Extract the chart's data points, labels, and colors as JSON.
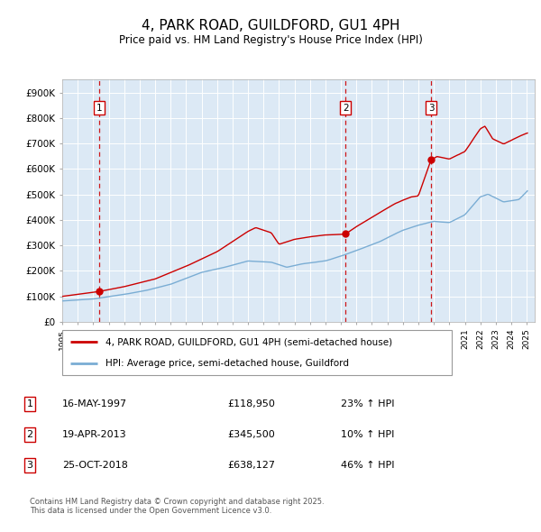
{
  "title": "4, PARK ROAD, GUILDFORD, GU1 4PH",
  "subtitle": "Price paid vs. HM Land Registry's House Price Index (HPI)",
  "background_color": "#dce9f5",
  "ylim": [
    0,
    950000
  ],
  "yticks": [
    0,
    100000,
    200000,
    300000,
    400000,
    500000,
    600000,
    700000,
    800000,
    900000
  ],
  "ytick_labels": [
    "£0",
    "£100K",
    "£200K",
    "£300K",
    "£400K",
    "£500K",
    "£600K",
    "£700K",
    "£800K",
    "£900K"
  ],
  "xlim_start": 1995.0,
  "xlim_end": 2025.5,
  "sale_dates": [
    1997.37,
    2013.29,
    2018.82
  ],
  "sale_prices": [
    118950,
    345500,
    638127
  ],
  "sale_labels": [
    "1",
    "2",
    "3"
  ],
  "legend_line1": "4, PARK ROAD, GUILDFORD, GU1 4PH (semi-detached house)",
  "legend_line2": "HPI: Average price, semi-detached house, Guildford",
  "table_entries": [
    {
      "num": "1",
      "date": "16-MAY-1997",
      "price": "£118,950",
      "hpi": "23% ↑ HPI"
    },
    {
      "num": "2",
      "date": "19-APR-2013",
      "price": "£345,500",
      "hpi": "10% ↑ HPI"
    },
    {
      "num": "3",
      "date": "25-OCT-2018",
      "price": "£638,127",
      "hpi": "46% ↑ HPI"
    }
  ],
  "footer": "Contains HM Land Registry data © Crown copyright and database right 2025.\nThis data is licensed under the Open Government Licence v3.0.",
  "line_color_red": "#cc0000",
  "line_color_blue": "#7aadd4",
  "vline_color": "#cc0000",
  "xtick_years": [
    1995,
    1996,
    1997,
    1998,
    1999,
    2000,
    2001,
    2002,
    2003,
    2004,
    2005,
    2006,
    2007,
    2008,
    2009,
    2010,
    2011,
    2012,
    2013,
    2014,
    2015,
    2016,
    2017,
    2018,
    2019,
    2020,
    2021,
    2022,
    2023,
    2024,
    2025
  ]
}
